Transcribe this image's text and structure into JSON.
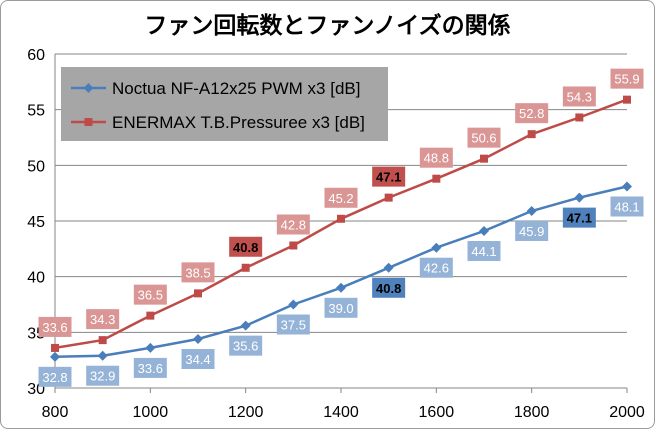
{
  "chart_data": {
    "type": "line",
    "title": "ファン回転数とファンノイズの関係",
    "xlabel": "",
    "ylabel": "",
    "x": [
      800,
      900,
      1000,
      1100,
      1200,
      1300,
      1400,
      1500,
      1600,
      1700,
      1800,
      1900,
      2000
    ],
    "xlim": [
      800,
      2000
    ],
    "xticks": [
      "800",
      "1000",
      "1200",
      "1400",
      "1600",
      "1800",
      "2000"
    ],
    "ylim": [
      30,
      60
    ],
    "yticks": [
      "30",
      "35",
      "40",
      "45",
      "50",
      "55",
      "60"
    ],
    "grid": true,
    "legend_position": "top-left",
    "series": [
      {
        "name": "Noctua NF-A12x25 PWM x3 [dB]",
        "values": [
          32.8,
          32.9,
          33.6,
          34.4,
          35.6,
          37.5,
          39.0,
          40.8,
          42.6,
          44.1,
          45.9,
          47.1,
          48.1
        ],
        "labels": [
          "32.8",
          "32.9",
          "33.6",
          "34.4",
          "35.6",
          "37.5",
          "39.0",
          "40.8",
          "42.6",
          "44.1",
          "45.9",
          "47.1",
          "48.1"
        ],
        "highlight": [
          false,
          false,
          false,
          false,
          false,
          false,
          false,
          true,
          false,
          false,
          false,
          true,
          false
        ],
        "color": "#4a7ebb",
        "label_fill": "#95b3d7",
        "label_fill_highlight": "#4f81bd",
        "marker": "diamond",
        "label_side": "below"
      },
      {
        "name": "ENERMAX T.B.Pressuree x3 [dB]",
        "values": [
          33.6,
          34.3,
          36.5,
          38.5,
          40.8,
          42.8,
          45.2,
          47.1,
          48.8,
          50.6,
          52.8,
          54.3,
          55.9
        ],
        "labels": [
          "33.6",
          "34.3",
          "36.5",
          "38.5",
          "40.8",
          "42.8",
          "45.2",
          "47.1",
          "48.8",
          "50.6",
          "52.8",
          "54.3",
          "55.9"
        ],
        "highlight": [
          false,
          false,
          false,
          false,
          true,
          false,
          false,
          true,
          false,
          false,
          false,
          false,
          false
        ],
        "color": "#be4b48",
        "label_fill": "#da9694",
        "label_fill_highlight": "#c0504d",
        "marker": "square",
        "label_side": "above"
      }
    ]
  }
}
